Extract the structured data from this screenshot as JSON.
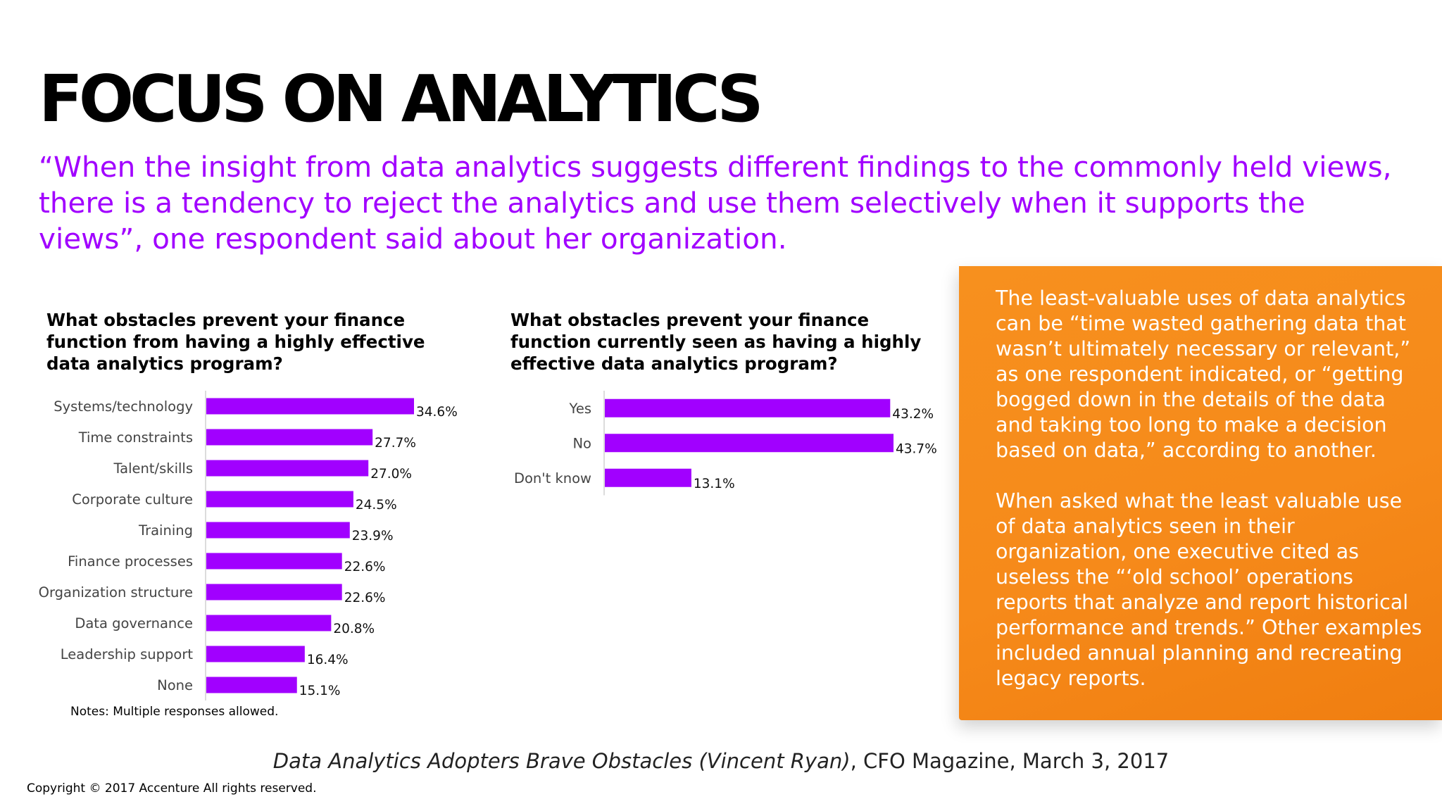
{
  "title": "FOCUS ON ANALYTICS",
  "quote": "“When the insight from data analytics suggests different findings to the commonly held views, there is a tendency to reject the analytics and use them selectively when it supports the views”, one respondent said about her organization.",
  "accent_color": "#a100ff",
  "note_color": "#f7901e",
  "chart_data": [
    {
      "type": "bar",
      "orientation": "horizontal",
      "title": "What obstacles prevent your finance function from having a highly effective data analytics program?",
      "categories": [
        "Systems/technology",
        "Time constraints",
        "Talent/skills",
        "Corporate culture",
        "Training",
        "Finance processes",
        "Organization structure",
        "Data governance",
        "Leadership support",
        "None"
      ],
      "values": [
        34.6,
        27.7,
        27.0,
        24.5,
        23.9,
        22.6,
        22.6,
        20.8,
        16.4,
        15.1
      ],
      "labels": [
        "34.6%",
        "27.7%",
        "27.0%",
        "24.5%",
        "23.9%",
        "22.6%",
        "22.6%",
        "20.8%",
        "16.4%",
        "15.1%"
      ],
      "xlim": [
        0,
        34.6
      ],
      "grid": false,
      "color": "#a100ff"
    },
    {
      "type": "bar",
      "orientation": "horizontal",
      "title": "What obstacles prevent your finance function currently seen as having a highly effective data analytics program?",
      "categories": [
        "Yes",
        "No",
        "Don't know"
      ],
      "values": [
        43.2,
        43.7,
        13.1
      ],
      "labels": [
        "43.2%",
        "43.7%",
        "13.1%"
      ],
      "xlim": [
        0,
        43.7
      ],
      "grid": false,
      "color": "#a100ff"
    }
  ],
  "notes": "Notes: Multiple responses allowed.",
  "sidebar": {
    "paragraphs": [
      "The least-valuable uses of data analytics can be “time wasted gathering data that wasn’t ultimately necessary or relevant,” as one respondent indicated, or “getting bogged down in the details of the data and taking too long to make a decision based on data,” according to another.",
      "When asked what the least valuable use of data analytics seen in their organization, one executive cited as useless the “‘old school’ operations reports that analyze and report historical performance and trends.” Other examples included annual planning and recreating legacy reports."
    ]
  },
  "source": {
    "title": "Data Analytics Adopters Brave Obstacles (Vincent Ryan)",
    "rest": ", CFO Magazine, March 3, 2017"
  },
  "copyright": "Copyright © 2017 Accenture  All rights reserved."
}
